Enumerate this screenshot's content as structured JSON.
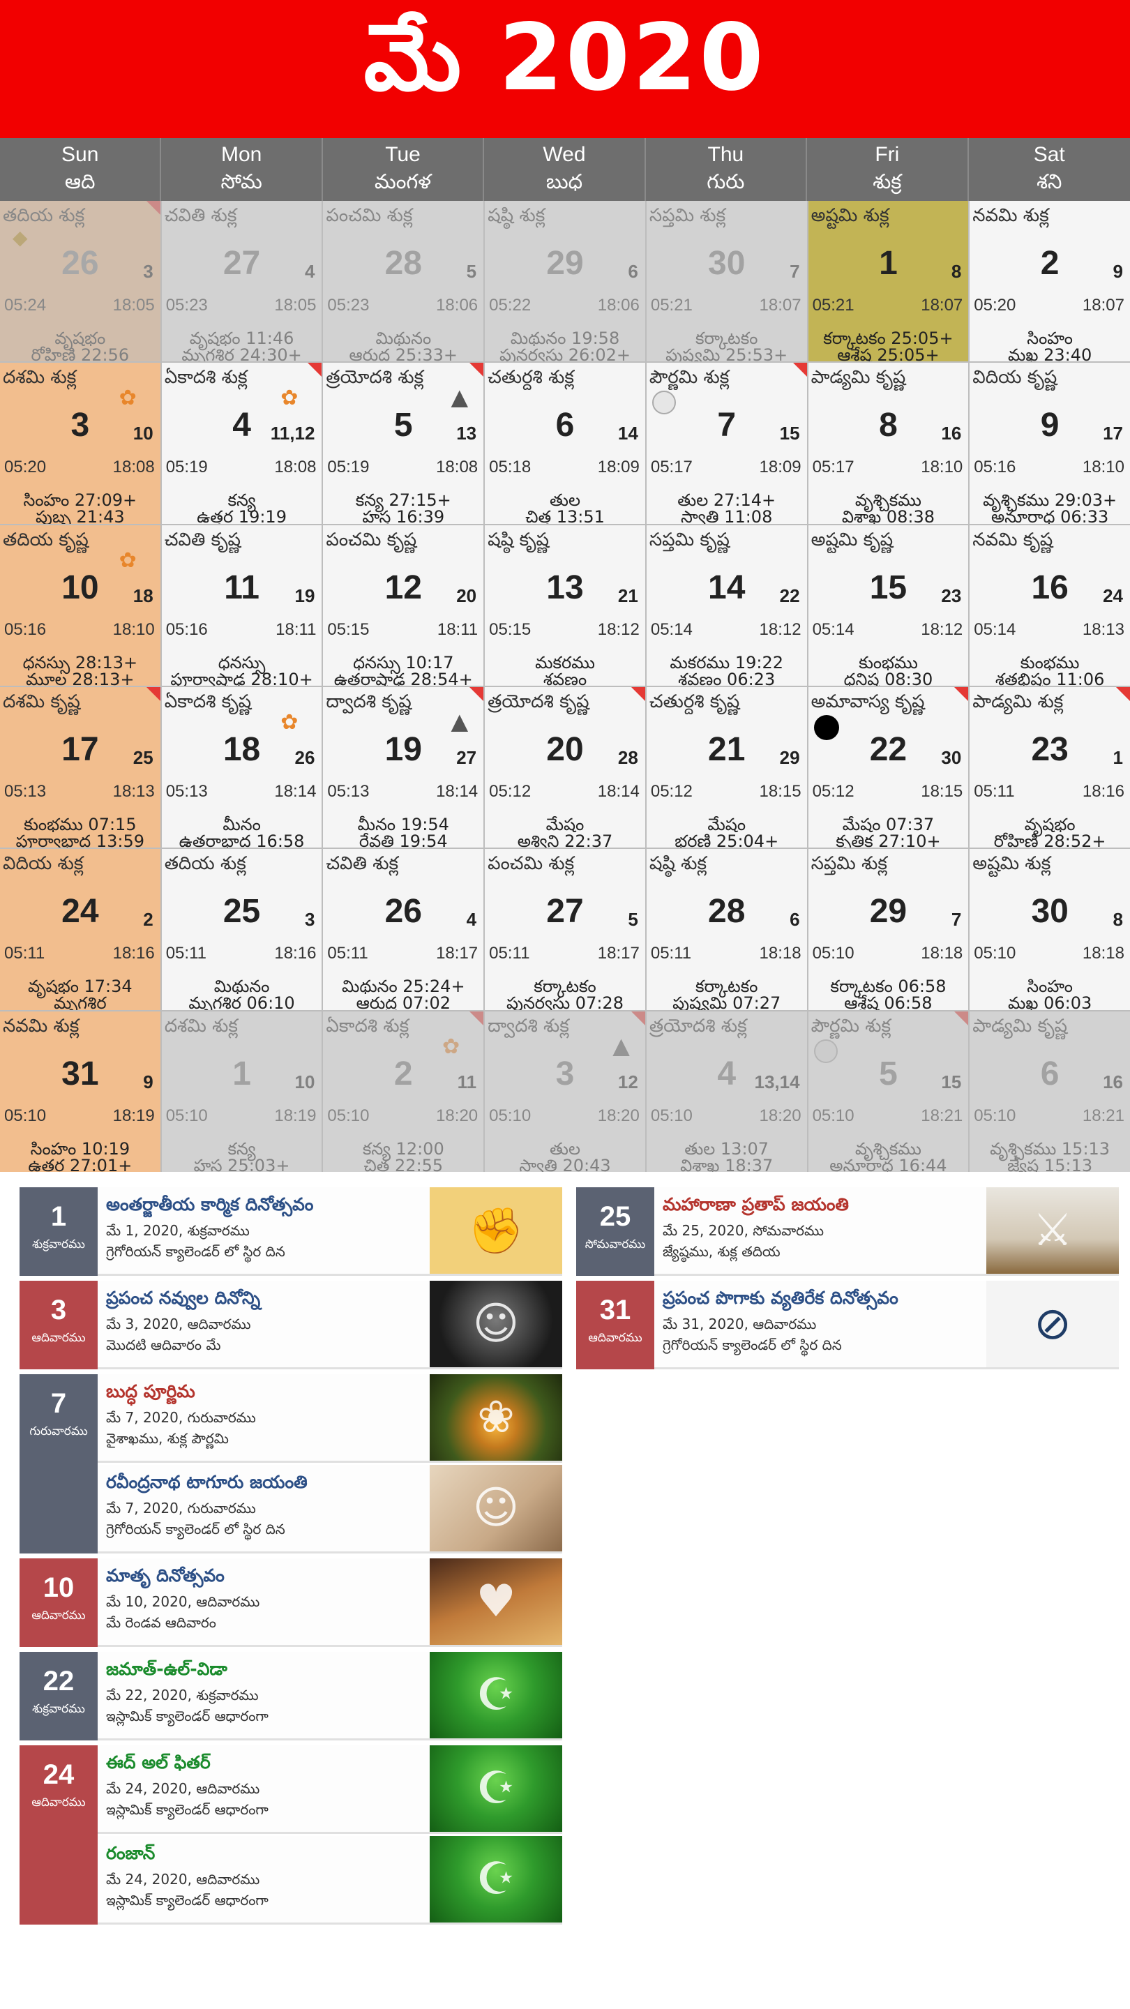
{
  "header": {
    "title": "మే 2020"
  },
  "weekdays": [
    {
      "en": "Sun",
      "te": "ఆది"
    },
    {
      "en": "Mon",
      "te": "సోమ"
    },
    {
      "en": "Tue",
      "te": "మంగళ"
    },
    {
      "en": "Wed",
      "te": "బుధ"
    },
    {
      "en": "Thu",
      "te": "గురు"
    },
    {
      "en": "Fri",
      "te": "శుక్ర"
    },
    {
      "en": "Sat",
      "te": "శని"
    }
  ],
  "cells": [
    {
      "tithi": "తదియ శుక్ల",
      "big": "26",
      "small": "3",
      "rise": "05:24",
      "set": "18:05",
      "l1": "వృషభం",
      "l2": "రోహిణి 22:56",
      "other": true,
      "fold": true,
      "icon": "shape"
    },
    {
      "tithi": "చవితి శుక్ల",
      "big": "27",
      "small": "4",
      "rise": "05:23",
      "set": "18:05",
      "l1": "వృషభం 11:46",
      "l2": "మృగశిర 24:30+",
      "other": true
    },
    {
      "tithi": "పంచమి శుక్ల",
      "big": "28",
      "small": "5",
      "rise": "05:23",
      "set": "18:06",
      "l1": "మిథునం",
      "l2": "ఆరుద్ర 25:33+",
      "other": true
    },
    {
      "tithi": "షష్ఠి శుక్ల",
      "big": "29",
      "small": "6",
      "rise": "05:22",
      "set": "18:06",
      "l1": "మిథునం 19:58",
      "l2": "పునర్వసు 26:02+",
      "other": true
    },
    {
      "tithi": "సప్తమి శుక్ల",
      "big": "30",
      "small": "7",
      "rise": "05:21",
      "set": "18:07",
      "l1": "కర్కాటకం",
      "l2": "పుష్యమి 25:53+",
      "other": true
    },
    {
      "tithi": "అష్టమి శుక్ల",
      "big": "1",
      "small": "8",
      "rise": "05:21",
      "set": "18:07",
      "l1": "కర్కాటకం 25:05+",
      "l2": "ఆశ్లేష 25:05+",
      "today": true
    },
    {
      "tithi": "నవమి శుక్ల",
      "big": "2",
      "small": "9",
      "rise": "05:20",
      "set": "18:07",
      "l1": "సింహం",
      "l2": "మఖ 23:40"
    },
    {
      "tithi": "దశమి శుక్ల",
      "big": "3",
      "small": "10",
      "rise": "05:20",
      "set": "18:08",
      "l1": "సింహం 27:09+",
      "l2": "పుబ్బ 21:43",
      "icon": "god"
    },
    {
      "tithi": "ఏకాదశి శుక్ల",
      "big": "4",
      "small": "11,12",
      "rise": "05:19",
      "set": "18:08",
      "l1": "కన్య",
      "l2": "ఉత్తర 19:19",
      "fold": true,
      "icon": "god"
    },
    {
      "tithi": "త్రయోదశి శుక్ల",
      "big": "5",
      "small": "13",
      "rise": "05:19",
      "set": "18:08",
      "l1": "కన్య 27:15+",
      "l2": "హస్త 16:39",
      "fold": true,
      "icon": "linga"
    },
    {
      "tithi": "చతుర్దశి శుక్ల",
      "big": "6",
      "small": "14",
      "rise": "05:18",
      "set": "18:09",
      "l1": "తుల",
      "l2": "చిత్త 13:51"
    },
    {
      "tithi": "పౌర్ణమి శుక్ల",
      "big": "7",
      "small": "15",
      "rise": "05:17",
      "set": "18:09",
      "l1": "తుల 27:14+",
      "l2": "స్వాతి 11:08",
      "fold": true,
      "icon": "purnima"
    },
    {
      "tithi": "పాడ్యమి కృష్ణ",
      "big": "8",
      "small": "16",
      "rise": "05:17",
      "set": "18:10",
      "l1": "వృశ్చికము",
      "l2": "విశాఖ 08:38"
    },
    {
      "tithi": "విదియ కృష్ణ",
      "big": "9",
      "small": "17",
      "rise": "05:16",
      "set": "18:10",
      "l1": "వృశ్చికము 29:03+",
      "l2": "అనూరాధ 06:33"
    },
    {
      "tithi": "తదియ కృష్ణ",
      "big": "10",
      "small": "18",
      "rise": "05:16",
      "set": "18:10",
      "l1": "ధనస్సు 28:13+",
      "l2": "మూల 28:13+",
      "icon": "god"
    },
    {
      "tithi": "చవితి కృష్ణ",
      "big": "11",
      "small": "19",
      "rise": "05:16",
      "set": "18:11",
      "l1": "ధనస్సు",
      "l2": "పూర్వాషాఢ 28:10+"
    },
    {
      "tithi": "పంచమి కృష్ణ",
      "big": "12",
      "small": "20",
      "rise": "05:15",
      "set": "18:11",
      "l1": "ధనస్సు 10:17",
      "l2": "ఉత్తరాషాఢ 28:54+"
    },
    {
      "tithi": "షష్ఠి కృష్ణ",
      "big": "13",
      "small": "21",
      "rise": "05:15",
      "set": "18:12",
      "l1": "మకరము",
      "l2": "శ్రవణం"
    },
    {
      "tithi": "సప్తమి కృష్ణ",
      "big": "14",
      "small": "22",
      "rise": "05:14",
      "set": "18:12",
      "l1": "మకరము 19:22",
      "l2": "శ్రవణం 06:23"
    },
    {
      "tithi": "అష్టమి కృష్ణ",
      "big": "15",
      "small": "23",
      "rise": "05:14",
      "set": "18:12",
      "l1": "కుంభము",
      "l2": "ధనిష్ఠ 08:30"
    },
    {
      "tithi": "నవమి కృష్ణ",
      "big": "16",
      "small": "24",
      "rise": "05:14",
      "set": "18:13",
      "l1": "కుంభము",
      "l2": "శతభిషం 11:06"
    },
    {
      "tithi": "దశమి కృష్ణ",
      "big": "17",
      "small": "25",
      "rise": "05:13",
      "set": "18:13",
      "l1": "కుంభము 07:15",
      "l2": "పూర్వాభాద్ర 13:59",
      "fold": true
    },
    {
      "tithi": "ఏకాదశి కృష్ణ",
      "big": "18",
      "small": "26",
      "rise": "05:13",
      "set": "18:14",
      "l1": "మీనం",
      "l2": "ఉత్తరాభాద్ర 16:58",
      "icon": "god"
    },
    {
      "tithi": "ద్వాదశి కృష్ణ",
      "big": "19",
      "small": "27",
      "rise": "05:13",
      "set": "18:14",
      "l1": "మీనం 19:54",
      "l2": "రేవతి 19:54",
      "fold": true,
      "icon": "linga"
    },
    {
      "tithi": "త్రయోదశి కృష్ణ",
      "big": "20",
      "small": "28",
      "rise": "05:12",
      "set": "18:14",
      "l1": "మేషం",
      "l2": "అశ్విని 22:37",
      "fold": true
    },
    {
      "tithi": "చతుర్దశి కృష్ణ",
      "big": "21",
      "small": "29",
      "rise": "05:12",
      "set": "18:15",
      "l1": "మేషం",
      "l2": "భరణి 25:04+"
    },
    {
      "tithi": "అమావాస్య కృష్ణ",
      "big": "22",
      "small": "30",
      "rise": "05:12",
      "set": "18:15",
      "l1": "మేషం 07:37",
      "l2": "కృత్తిక 27:10+",
      "fold": true,
      "icon": "amavasya"
    },
    {
      "tithi": "పాడ్యమి శుక్ల",
      "big": "23",
      "small": "1",
      "rise": "05:11",
      "set": "18:16",
      "l1": "వృషభం",
      "l2": "రోహిణి 28:52+",
      "fold": true
    },
    {
      "tithi": "విదియ శుక్ల",
      "big": "24",
      "small": "2",
      "rise": "05:11",
      "set": "18:16",
      "l1": "వృషభం 17:34",
      "l2": "మృగశిర"
    },
    {
      "tithi": "తదియ శుక్ల",
      "big": "25",
      "small": "3",
      "rise": "05:11",
      "set": "18:16",
      "l1": "మిథునం",
      "l2": "మృగశిర 06:10"
    },
    {
      "tithi": "చవితి శుక్ల",
      "big": "26",
      "small": "4",
      "rise": "05:11",
      "set": "18:17",
      "l1": "మిథునం 25:24+",
      "l2": "ఆరుద్ర 07:02"
    },
    {
      "tithi": "పంచమి శుక్ల",
      "big": "27",
      "small": "5",
      "rise": "05:11",
      "set": "18:17",
      "l1": "కర్కాటకం",
      "l2": "పునర్వసు 07:28"
    },
    {
      "tithi": "షష్ఠి శుక్ల",
      "big": "28",
      "small": "6",
      "rise": "05:11",
      "set": "18:18",
      "l1": "కర్కాటకం",
      "l2": "పుష్యమి 07:27"
    },
    {
      "tithi": "సప్తమి శుక్ల",
      "big": "29",
      "small": "7",
      "rise": "05:10",
      "set": "18:18",
      "l1": "కర్కాటకం 06:58",
      "l2": "ఆశ్లేష 06:58"
    },
    {
      "tithi": "అష్టమి శుక్ల",
      "big": "30",
      "small": "8",
      "rise": "05:10",
      "set": "18:18",
      "l1": "సింహం",
      "l2": "మఖ 06:03"
    },
    {
      "tithi": "నవమి శుక్ల",
      "big": "31",
      "small": "9",
      "rise": "05:10",
      "set": "18:19",
      "l1": "సింహం 10:19",
      "l2": "ఉత్తర 27:01+"
    },
    {
      "tithi": "దశమి శుక్ల",
      "big": "1",
      "small": "10",
      "rise": "05:10",
      "set": "18:19",
      "l1": "కన్య",
      "l2": "హస్త 25:03+",
      "other": true
    },
    {
      "tithi": "ఏకాదశి శుక్ల",
      "big": "2",
      "small": "11",
      "rise": "05:10",
      "set": "18:20",
      "l1": "కన్య 12:00",
      "l2": "చిత్త 22:55",
      "other": true,
      "fold": true,
      "icon": "god"
    },
    {
      "tithi": "ద్వాదశి శుక్ల",
      "big": "3",
      "small": "12",
      "rise": "05:10",
      "set": "18:20",
      "l1": "తుల",
      "l2": "స్వాతి 20:43",
      "other": true,
      "fold": true,
      "icon": "linga"
    },
    {
      "tithi": "త్రయోదశి శుక్ల",
      "big": "4",
      "small": "13,14",
      "rise": "05:10",
      "set": "18:20",
      "l1": "తుల 13:07",
      "l2": "విశాఖ 18:37",
      "other": true
    },
    {
      "tithi": "పౌర్ణమి శుక్ల",
      "big": "5",
      "small": "15",
      "rise": "05:10",
      "set": "18:21",
      "l1": "వృశ్చికము",
      "l2": "అనూరాధ 16:44",
      "other": true,
      "fold": true,
      "icon": "purnima"
    },
    {
      "tithi": "పాడ్యమి కృష్ణ",
      "big": "6",
      "small": "16",
      "rise": "05:10",
      "set": "18:21",
      "l1": "వృశ్చికము 15:13",
      "l2": "జ్యేష్ఠ 15:13",
      "other": true
    }
  ],
  "events_left": [
    {
      "day": "1",
      "weekday": "శుక్రవారము",
      "red": false,
      "items": [
        {
          "title": "అంతర్జాతీయ కార్మిక దినోత్సవం",
          "date": "మే 1, 2020, శుక్రవారము",
          "desc": "గ్రెగోరియన్ క్యాలెండర్ లో స్థిర దిన",
          "color": "blue",
          "img": "fist"
        }
      ]
    },
    {
      "day": "3",
      "weekday": "ఆదివారము",
      "red": true,
      "items": [
        {
          "title": "ప్రపంచ నవ్వుల దినోన్ని",
          "date": "మే 3, 2020, ఆదివారము",
          "desc": "మొదటి ఆదివారం మే",
          "color": "blue",
          "img": "buddha"
        }
      ]
    },
    {
      "day": "7",
      "weekday": "గురువారము",
      "red": false,
      "items": [
        {
          "title": "బుద్ధ పూర్ణిమ",
          "date": "మే 7, 2020, గురువారము",
          "desc": "వైశాఖము, శుక్ల పౌర్ణమి",
          "color": "red",
          "img": "tree"
        },
        {
          "title": "రవీంద్రనాథ టాగూరు జయంతి",
          "date": "మే 7, 2020, గురువారము",
          "desc": "గ్రెగోరియన్ క్యాలెండర్ లో స్థిర దిన",
          "color": "blue",
          "img": "tagore"
        }
      ]
    },
    {
      "day": "10",
      "weekday": "ఆదివారము",
      "red": true,
      "items": [
        {
          "title": "మాతృ దినోత్సవం",
          "date": "మే 10, 2020, ఆదివారము",
          "desc": "మే రెండవ ఆదివారం",
          "color": "blue",
          "img": "mother"
        }
      ]
    },
    {
      "day": "22",
      "weekday": "శుక్రవారము",
      "red": false,
      "items": [
        {
          "title": "జమాత్-ఉల్-విడా",
          "date": "మే 22, 2020, శుక్రవారము",
          "desc": "ఇస్లామిక్ క్యాలెండర్ ఆధారంగా",
          "color": "green",
          "img": "mosque"
        }
      ]
    },
    {
      "day": "24",
      "weekday": "ఆదివారము",
      "red": true,
      "items": [
        {
          "title": "ఈద్ అల్ ఫితర్",
          "date": "మే 24, 2020, ఆదివారము",
          "desc": "ఇస్లామిక్ క్యాలెండర్ ఆధారంగా",
          "color": "green",
          "img": "mosque"
        },
        {
          "title": "రంజాన్",
          "date": "మే 24, 2020, ఆదివారము",
          "desc": "ఇస్లామిక్ క్యాలెండర్ ఆధారంగా",
          "color": "green",
          "img": "mosque"
        }
      ]
    }
  ],
  "events_right": [
    {
      "day": "25",
      "weekday": "సోమవారము",
      "red": false,
      "items": [
        {
          "title": "మహారాణా ప్రతాప్ జయంతి",
          "date": "మే 25, 2020, సోమవారము",
          "desc": "జ్యేష్ఠము, శుక్ల తదియ",
          "color": "red",
          "img": "pratap"
        }
      ]
    },
    {
      "day": "31",
      "weekday": "ఆదివారము",
      "red": true,
      "items": [
        {
          "title": "ప్రపంచ పొగాకు వ్యతిరేక దినోత్సవం",
          "date": "మే 31, 2020, ఆదివారము",
          "desc": "గ్రెగోరియన్ క్యాలెండర్ లో స్థిర దిన",
          "color": "blue",
          "img": "notobacco"
        }
      ]
    }
  ]
}
